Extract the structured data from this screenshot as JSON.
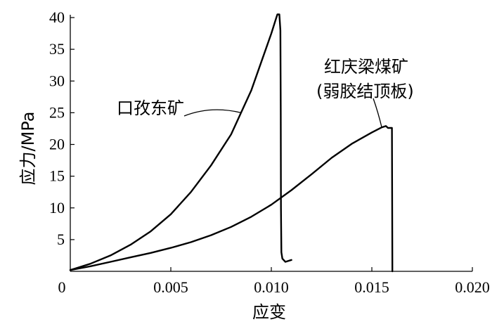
{
  "chart_data": {
    "type": "line",
    "xlabel": "应变",
    "ylabel": "应力/MPa",
    "xlim": [
      0,
      0.02
    ],
    "ylim": [
      0,
      40
    ],
    "x_ticks": [
      0.005,
      0.01,
      0.015,
      0.02
    ],
    "x_tick_labels": [
      "0.005",
      "0.010",
      "0.015",
      "0.020"
    ],
    "y_ticks": [
      5,
      10,
      15,
      20,
      25,
      30,
      35,
      40
    ],
    "y_tick_labels": [
      "5",
      "10",
      "15",
      "20",
      "25",
      "30",
      "35",
      "40"
    ],
    "origin_label": "0",
    "grid": false,
    "series": [
      {
        "name": "口孜东矿",
        "points": [
          [
            0,
            0.2
          ],
          [
            0.001,
            1.2
          ],
          [
            0.002,
            2.5
          ],
          [
            0.003,
            4.2
          ],
          [
            0.004,
            6.3
          ],
          [
            0.005,
            9.0
          ],
          [
            0.006,
            12.5
          ],
          [
            0.007,
            16.7
          ],
          [
            0.008,
            21.6
          ],
          [
            0.009,
            28.5
          ],
          [
            0.0095,
            33.0
          ],
          [
            0.01,
            37.5
          ],
          [
            0.0102,
            39.5
          ],
          [
            0.0103,
            40.5
          ],
          [
            0.0104,
            40.5
          ],
          [
            0.01045,
            38.0
          ],
          [
            0.01047,
            25.0
          ],
          [
            0.01048,
            10.0
          ],
          [
            0.0105,
            3.0
          ],
          [
            0.01055,
            2.0
          ],
          [
            0.0107,
            1.5
          ],
          [
            0.011,
            1.8
          ]
        ]
      },
      {
        "name": "红庆梁煤矿(弱胶结顶板)",
        "points": [
          [
            0,
            0.2
          ],
          [
            0.001,
            0.8
          ],
          [
            0.002,
            1.5
          ],
          [
            0.003,
            2.2
          ],
          [
            0.004,
            2.9
          ],
          [
            0.005,
            3.7
          ],
          [
            0.006,
            4.6
          ],
          [
            0.007,
            5.7
          ],
          [
            0.008,
            7.0
          ],
          [
            0.009,
            8.6
          ],
          [
            0.01,
            10.5
          ],
          [
            0.011,
            12.8
          ],
          [
            0.012,
            15.3
          ],
          [
            0.013,
            17.9
          ],
          [
            0.014,
            20.1
          ],
          [
            0.015,
            21.9
          ],
          [
            0.0155,
            22.7
          ],
          [
            0.0157,
            22.9
          ],
          [
            0.0158,
            22.6
          ],
          [
            0.0159,
            22.6
          ],
          [
            0.016,
            22.6
          ],
          [
            0.01602,
            0
          ]
        ]
      }
    ],
    "annotations": [
      {
        "text": "口孜东矿",
        "target": "series-0"
      },
      {
        "text": "红庆梁煤矿",
        "text2": "(弱胶结顶板)",
        "target": "series-1"
      }
    ]
  }
}
